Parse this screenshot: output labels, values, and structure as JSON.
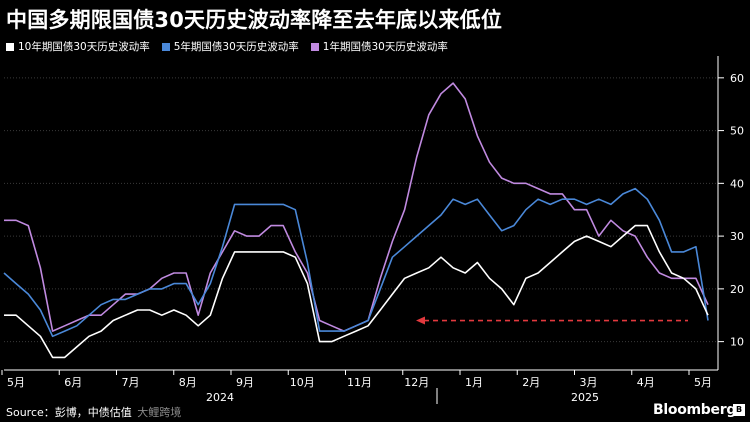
{
  "chart_data": {
    "type": "line",
    "title": "中国多期限国债30天历史波动率降至去年底以来低位",
    "months": [
      "5月",
      "6月",
      "7月",
      "8月",
      "9月",
      "10月",
      "11月",
      "12月",
      "1月",
      "2月",
      "3月",
      "4月",
      "5月"
    ],
    "years": [
      "2024",
      "2025"
    ],
    "y_ticks": [
      10,
      20,
      30,
      40,
      50,
      60
    ],
    "ylim": [
      5,
      63
    ],
    "grid": true,
    "series": [
      {
        "name": "10年期国债30天历史波动率",
        "color": "#ffffff",
        "values": [
          15,
          15,
          13,
          11,
          7,
          7,
          9,
          11,
          12,
          14,
          15,
          16,
          16,
          15,
          16,
          15,
          13,
          15,
          22,
          27,
          27,
          27,
          27,
          27,
          26,
          21,
          10,
          10,
          11,
          12,
          13,
          16,
          19,
          22,
          23,
          24,
          26,
          24,
          23,
          25,
          22,
          20,
          17,
          22,
          23,
          25,
          27,
          29,
          30,
          29,
          28,
          30,
          32,
          32,
          27,
          23,
          22,
          20,
          15
        ]
      },
      {
        "name": "5年期国债30天历史波动率",
        "color": "#4a88d8",
        "values": [
          23,
          21,
          19,
          16,
          11,
          12,
          13,
          15,
          17,
          18,
          18,
          19,
          20,
          20,
          21,
          21,
          17,
          21,
          28,
          36,
          36,
          36,
          36,
          36,
          35,
          25,
          12,
          12,
          12,
          13,
          14,
          20,
          26,
          28,
          30,
          32,
          34,
          37,
          36,
          37,
          34,
          31,
          32,
          35,
          37,
          36,
          37,
          37,
          36,
          37,
          36,
          38,
          39,
          37,
          33,
          27,
          27,
          28,
          14
        ]
      },
      {
        "name": "1年期国债30天历史波动率",
        "color": "#c08ae0",
        "values": [
          33,
          33,
          32,
          24,
          12,
          13,
          14,
          15,
          15,
          17,
          19,
          19,
          20,
          22,
          23,
          23,
          15,
          23,
          27,
          31,
          30,
          30,
          32,
          32,
          27,
          23,
          14,
          13,
          12,
          13,
          14,
          22,
          29,
          35,
          45,
          53,
          57,
          59,
          56,
          49,
          44,
          41,
          40,
          40,
          39,
          38,
          38,
          35,
          35,
          30,
          33,
          31,
          30,
          26,
          23,
          22,
          22,
          22,
          17
        ]
      }
    ],
    "annotation": {
      "type": "dashed-arrow",
      "color": "#e2393e",
      "y": 14
    }
  },
  "source": {
    "label": "Source：彭博，中债估值",
    "watermark": "大鲤跨境"
  },
  "brand": "Bloomberg"
}
